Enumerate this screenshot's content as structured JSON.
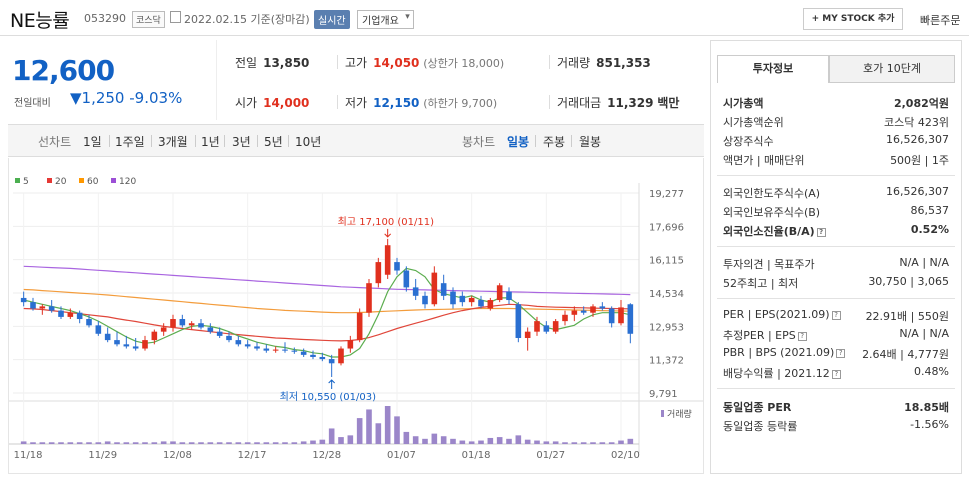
{
  "header": {
    "name": "NE능률",
    "code": "053290",
    "market": "코스닥",
    "date": "2022.02.15 기준(장마감)",
    "realtime": "실시간",
    "company": "기업개요",
    "mystock": "+ MY STOCK 추가",
    "quick": "빠른주문"
  },
  "price": {
    "current": "12,600",
    "change_label": "전일대비",
    "change": "▼1,250",
    "change_pct": "-9.03%"
  },
  "quote": {
    "prev_label": "전일",
    "prev": "13,850",
    "high_label": "고가",
    "high": "14,050",
    "upper": "(상한가 18,000)",
    "volume_label": "거래량",
    "volume": "851,353",
    "open_label": "시가",
    "open": "14,000",
    "low_label": "저가",
    "low": "12,150",
    "lower": "(하한가 9,700)",
    "amount_label": "거래대금",
    "amount": "11,329",
    "amount_unit": "백만"
  },
  "tabs": {
    "line": "선차트",
    "d1": "1일",
    "w1": "1주일",
    "m3": "3개월",
    "y1": "1년",
    "y3": "3년",
    "y5": "5년",
    "y10": "10년",
    "candle": "봉차트",
    "daily": "일봉",
    "weekly": "주봉",
    "monthly": "월봉"
  },
  "chart_data": {
    "type": "candlestick",
    "legend": [
      "5",
      "20",
      "60",
      "120"
    ],
    "legend_colors": [
      "#4caf50",
      "#e53935",
      "#ff9800",
      "#9c4fd6"
    ],
    "y_ticks": [
      "19,277",
      "17,696",
      "16,115",
      "14,534",
      "12,953",
      "11,372",
      "9,791"
    ],
    "x_ticks": [
      "11/18",
      "11/29",
      "12/08",
      "12/17",
      "12/28",
      "01/07",
      "01/18",
      "01/27",
      "02/10"
    ],
    "high_annotation": "최고 17,100 (01/11)",
    "low_annotation": "최저 10,550 (01/03)",
    "volume_label": "거래량",
    "candles": [
      {
        "o": 14300,
        "h": 14600,
        "l": 13900,
        "c": 14100
      },
      {
        "o": 14100,
        "h": 14300,
        "l": 13700,
        "c": 13800
      },
      {
        "o": 13800,
        "h": 14000,
        "l": 13500,
        "c": 13900
      },
      {
        "o": 13900,
        "h": 14200,
        "l": 13600,
        "c": 13700
      },
      {
        "o": 13700,
        "h": 13900,
        "l": 13300,
        "c": 13400
      },
      {
        "o": 13400,
        "h": 13800,
        "l": 13300,
        "c": 13600
      },
      {
        "o": 13600,
        "h": 13700,
        "l": 13100,
        "c": 13300
      },
      {
        "o": 13300,
        "h": 13500,
        "l": 12900,
        "c": 13000
      },
      {
        "o": 13000,
        "h": 13200,
        "l": 12500,
        "c": 12600
      },
      {
        "o": 12600,
        "h": 12900,
        "l": 12200,
        "c": 12300
      },
      {
        "o": 12300,
        "h": 12700,
        "l": 12000,
        "c": 12100
      },
      {
        "o": 12100,
        "h": 12500,
        "l": 11900,
        "c": 12000
      },
      {
        "o": 12000,
        "h": 12400,
        "l": 11800,
        "c": 11900
      },
      {
        "o": 11900,
        "h": 12500,
        "l": 11800,
        "c": 12300
      },
      {
        "o": 12300,
        "h": 12800,
        "l": 12100,
        "c": 12700
      },
      {
        "o": 12700,
        "h": 13100,
        "l": 12500,
        "c": 12900
      },
      {
        "o": 12900,
        "h": 13500,
        "l": 12700,
        "c": 13300
      },
      {
        "o": 13300,
        "h": 13500,
        "l": 12900,
        "c": 13000
      },
      {
        "o": 13000,
        "h": 13200,
        "l": 12800,
        "c": 13100
      },
      {
        "o": 13100,
        "h": 13300,
        "l": 12800,
        "c": 12900
      },
      {
        "o": 12900,
        "h": 13100,
        "l": 12600,
        "c": 12700
      },
      {
        "o": 12700,
        "h": 12900,
        "l": 12400,
        "c": 12500
      },
      {
        "o": 12500,
        "h": 12700,
        "l": 12200,
        "c": 12300
      },
      {
        "o": 12300,
        "h": 12500,
        "l": 12000,
        "c": 12100
      },
      {
        "o": 12100,
        "h": 12300,
        "l": 11900,
        "c": 12000
      },
      {
        "o": 12000,
        "h": 12200,
        "l": 11800,
        "c": 11900
      },
      {
        "o": 11900,
        "h": 12100,
        "l": 11700,
        "c": 11800
      },
      {
        "o": 11800,
        "h": 12000,
        "l": 11700,
        "c": 11850
      },
      {
        "o": 11850,
        "h": 12200,
        "l": 11700,
        "c": 11800
      },
      {
        "o": 11800,
        "h": 11950,
        "l": 11650,
        "c": 11750
      },
      {
        "o": 11750,
        "h": 11900,
        "l": 11500,
        "c": 11600
      },
      {
        "o": 11600,
        "h": 11800,
        "l": 11400,
        "c": 11500
      },
      {
        "o": 11500,
        "h": 11700,
        "l": 11300,
        "c": 11400
      },
      {
        "o": 11400,
        "h": 11600,
        "l": 10550,
        "c": 11200
      },
      {
        "o": 11200,
        "h": 12000,
        "l": 11100,
        "c": 11900
      },
      {
        "o": 11900,
        "h": 12500,
        "l": 11700,
        "c": 12300
      },
      {
        "o": 12300,
        "h": 13800,
        "l": 12200,
        "c": 13600
      },
      {
        "o": 13600,
        "h": 15200,
        "l": 13400,
        "c": 15000
      },
      {
        "o": 15000,
        "h": 16200,
        "l": 14800,
        "c": 16000
      },
      {
        "o": 15400,
        "h": 17100,
        "l": 15200,
        "c": 16800
      },
      {
        "o": 16000,
        "h": 16200,
        "l": 15400,
        "c": 15600
      },
      {
        "o": 15600,
        "h": 15800,
        "l": 14600,
        "c": 14800
      },
      {
        "o": 14800,
        "h": 15200,
        "l": 14200,
        "c": 14400
      },
      {
        "o": 14400,
        "h": 14600,
        "l": 13800,
        "c": 14000
      },
      {
        "o": 14000,
        "h": 15800,
        "l": 13900,
        "c": 15500
      },
      {
        "o": 15000,
        "h": 15400,
        "l": 14200,
        "c": 14400
      },
      {
        "o": 14600,
        "h": 14800,
        "l": 13800,
        "c": 14000
      },
      {
        "o": 14400,
        "h": 14600,
        "l": 13900,
        "c": 14100
      },
      {
        "o": 14100,
        "h": 14400,
        "l": 13900,
        "c": 14300
      },
      {
        "o": 14200,
        "h": 14400,
        "l": 13800,
        "c": 13900
      },
      {
        "o": 13800,
        "h": 14300,
        "l": 13700,
        "c": 14200
      },
      {
        "o": 14200,
        "h": 15000,
        "l": 14100,
        "c": 14900
      },
      {
        "o": 14600,
        "h": 14800,
        "l": 14000,
        "c": 14200
      },
      {
        "o": 14000,
        "h": 14100,
        "l": 12200,
        "c": 12400
      },
      {
        "o": 12400,
        "h": 12900,
        "l": 11800,
        "c": 12700
      },
      {
        "o": 12700,
        "h": 13400,
        "l": 12500,
        "c": 13200
      },
      {
        "o": 13000,
        "h": 13200,
        "l": 12600,
        "c": 12700
      },
      {
        "o": 12700,
        "h": 13300,
        "l": 12600,
        "c": 13200
      },
      {
        "o": 13200,
        "h": 13700,
        "l": 13000,
        "c": 13500
      },
      {
        "o": 13500,
        "h": 13900,
        "l": 13200,
        "c": 13700
      },
      {
        "o": 13700,
        "h": 13900,
        "l": 13500,
        "c": 13600
      },
      {
        "o": 13600,
        "h": 14000,
        "l": 13400,
        "c": 13900
      },
      {
        "o": 13900,
        "h": 14100,
        "l": 13700,
        "c": 13800
      },
      {
        "o": 13800,
        "h": 13900,
        "l": 12900,
        "c": 13100
      },
      {
        "o": 13100,
        "h": 14200,
        "l": 13000,
        "c": 13850
      },
      {
        "o": 14000,
        "h": 14050,
        "l": 12150,
        "c": 12600
      }
    ],
    "ma5": [
      14200,
      14100,
      14000,
      13900,
      13800,
      13700,
      13550,
      13400,
      13200,
      12950,
      12700,
      12450,
      12250,
      12150,
      12200,
      12400,
      12600,
      12800,
      12950,
      13000,
      12950,
      12850,
      12700,
      12500,
      12350,
      12200,
      12100,
      12000,
      11950,
      11850,
      11800,
      11700,
      11650,
      11500,
      11500,
      11600,
      11900,
      12600,
      13500,
      14600,
      15300,
      15700,
      15600,
      15300,
      14700,
      14500,
      14400,
      14300,
      14400,
      14200,
      14100,
      14300,
      14300,
      14000,
      13600,
      13200,
      12900,
      12800,
      12900,
      13000,
      13300,
      13500,
      13600,
      13600,
      13600,
      13500
    ],
    "ma20": [
      13800,
      13780,
      13750,
      13700,
      13650,
      13600,
      13550,
      13500,
      13450,
      13400,
      13320,
      13250,
      13180,
      13100,
      13020,
      12950,
      12900,
      12850,
      12800,
      12750,
      12700,
      12650,
      12600,
      12560,
      12520,
      12480,
      12440,
      12400,
      12380,
      12350,
      12330,
      12310,
      12290,
      12270,
      12260,
      12280,
      12330,
      12420,
      12550,
      12700,
      12850,
      12980,
      13100,
      13220,
      13350,
      13480,
      13600,
      13700,
      13780,
      13850,
      13900,
      13950,
      14000,
      13980,
      13950,
      13900,
      13880,
      13860,
      13850,
      13840,
      13830,
      13820,
      13810,
      13800,
      13790,
      13780
    ],
    "ma60": [
      14700,
      14680,
      14650,
      14620,
      14590,
      14560,
      14530,
      14500,
      14470,
      14440,
      14400,
      14360,
      14320,
      14280,
      14240,
      14200,
      14160,
      14120,
      14080,
      14040,
      14000,
      13960,
      13920,
      13880,
      13840,
      13800,
      13770,
      13740,
      13710,
      13690,
      13670,
      13650,
      13630,
      13610,
      13600,
      13600,
      13610,
      13630,
      13650,
      13670,
      13690,
      13710,
      13730,
      13740,
      13750,
      13760,
      13770,
      13780,
      13790,
      13800,
      13800,
      13800,
      13800,
      13790,
      13780,
      13770,
      13760,
      13750,
      13740,
      13730,
      13720,
      13710,
      13700,
      13690,
      13680,
      13670
    ],
    "ma120": [
      15800,
      15780,
      15760,
      15740,
      15720,
      15700,
      15670,
      15640,
      15610,
      15580,
      15550,
      15520,
      15490,
      15460,
      15430,
      15400,
      15370,
      15340,
      15310,
      15280,
      15250,
      15220,
      15190,
      15160,
      15130,
      15100,
      15070,
      15040,
      15010,
      14980,
      14950,
      14920,
      14890,
      14860,
      14830,
      14810,
      14790,
      14770,
      14750,
      14730,
      14710,
      14700,
      14690,
      14680,
      14670,
      14660,
      14650,
      14640,
      14630,
      14620,
      14610,
      14600,
      14590,
      14580,
      14570,
      14560,
      14550,
      14540,
      14530,
      14520,
      14510,
      14500,
      14490,
      14480,
      14470,
      14460
    ],
    "volumes": [
      3,
      2,
      2,
      2,
      2,
      2,
      2,
      2,
      2,
      3,
      2,
      2,
      2,
      2,
      2,
      3,
      3,
      2,
      2,
      2,
      2,
      2,
      2,
      2,
      2,
      2,
      2,
      2,
      2,
      2,
      3,
      4,
      5,
      18,
      8,
      10,
      30,
      40,
      24,
      44,
      32,
      14,
      9,
      6,
      12,
      9,
      6,
      4,
      3,
      4,
      7,
      8,
      6,
      10,
      5,
      4,
      3,
      3,
      2,
      2,
      2,
      2,
      2,
      2,
      4,
      6
    ],
    "y_range": [
      9791,
      19277
    ]
  },
  "side": {
    "tab_active": "투자정보",
    "tab_inactive": "호가 10단계",
    "market_cap_label": "시가총액",
    "market_cap": "2,082억원",
    "rank_label": "시가총액순위",
    "rank": "코스닥 423위",
    "shares_label": "상장주식수",
    "shares": "16,526,307",
    "par_label": "액면가 | 매매단위",
    "par": "500원 | 1주",
    "foreign_limit_label": "외국인한도주식수(A)",
    "foreign_limit": "16,526,307",
    "foreign_hold_label": "외국인보유주식수(B)",
    "foreign_hold": "86,537",
    "foreign_ratio_label": "외국인소진율(B/A)",
    "foreign_ratio": "0.52%",
    "opinion_label": "투자의견 | 목표주가",
    "opinion": "N/A | N/A",
    "w52_label": "52주최고 | 최저",
    "w52": "30,750 | 3,065",
    "per_label": "PER | EPS(2021.09)",
    "per": "22.91배 | 550원",
    "est_per_label": "추정PER | EPS",
    "est_per": "N/A | N/A",
    "pbr_label": "PBR | BPS (2021.09)",
    "pbr": "2.64배 | 4,777원",
    "div_label": "배당수익률 | 2021.12",
    "div": "0.48%",
    "sector_per_label": "동일업종 PER",
    "sector_per": "18.85배",
    "sector_rate_label": "동일업종 등락률",
    "sector_rate": "-1.56%"
  }
}
